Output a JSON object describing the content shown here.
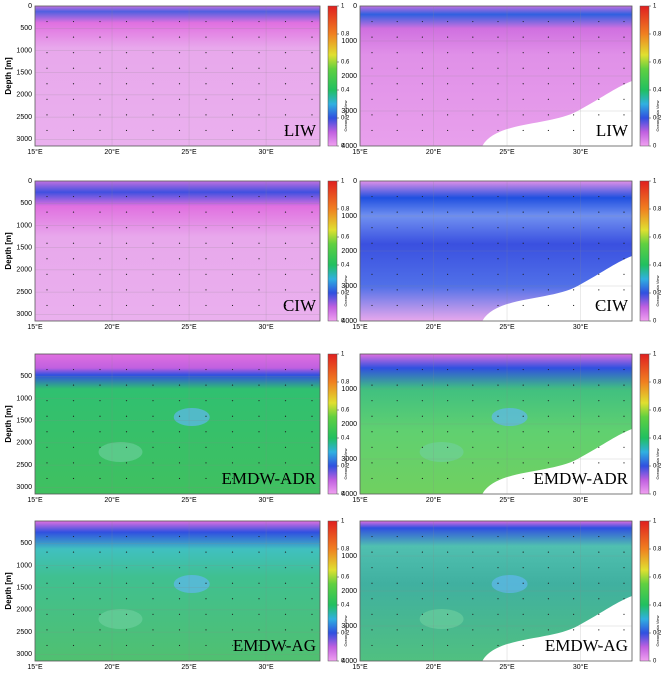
{
  "chart_data": [
    {
      "type": "section",
      "title": "LIW",
      "ylabel": "Depth [m]",
      "colorbar_label": "Ocean Data View",
      "xlim": [
        15,
        33.5
      ],
      "xticks": [
        {
          "value": 15,
          "label": "15°E"
        },
        {
          "value": 20,
          "label": "20°E"
        },
        {
          "value": 25,
          "label": "25°E"
        },
        {
          "value": 30,
          "label": "30°E"
        }
      ],
      "ylim": [
        0,
        3150
      ],
      "yticks": [
        0,
        500,
        1000,
        1500,
        2000,
        2500,
        3000
      ],
      "clim": [
        0,
        1
      ],
      "cticks": [
        0,
        0.2,
        0.4,
        0.6,
        0.8,
        1
      ]
    },
    {
      "type": "section",
      "title": "LIW",
      "colorbar_label": "Ocean Data View",
      "xlim": [
        15,
        33.5
      ],
      "xticks": [
        {
          "value": 15,
          "label": "15°E"
        },
        {
          "value": 20,
          "label": "20°E"
        },
        {
          "value": 25,
          "label": "25°E"
        },
        {
          "value": 30,
          "label": "30°E"
        }
      ],
      "ylim": [
        0,
        4000
      ],
      "yticks": [
        0,
        1000,
        2000,
        3000,
        4000
      ],
      "clim": [
        0,
        1
      ],
      "cticks": [
        0,
        0.2,
        0.4,
        0.6,
        0.8,
        1
      ]
    },
    {
      "type": "section",
      "title": "CIW",
      "ylabel": "Depth [m]",
      "colorbar_label": "Ocean Data View",
      "xlim": [
        15,
        33.5
      ],
      "xticks": [
        {
          "value": 15,
          "label": "15°E"
        },
        {
          "value": 20,
          "label": "20°E"
        },
        {
          "value": 25,
          "label": "25°E"
        },
        {
          "value": 30,
          "label": "30°E"
        }
      ],
      "ylim": [
        0,
        3150
      ],
      "yticks": [
        0,
        500,
        1000,
        1500,
        2000,
        2500,
        3000
      ],
      "clim": [
        0,
        1
      ],
      "cticks": [
        0,
        0.2,
        0.4,
        0.6,
        0.8,
        1
      ]
    },
    {
      "type": "section",
      "title": "CIW",
      "colorbar_label": "Ocean Data View",
      "xlim": [
        15,
        33.5
      ],
      "xticks": [
        {
          "value": 15,
          "label": "15°E"
        },
        {
          "value": 20,
          "label": "20°E"
        },
        {
          "value": 25,
          "label": "25°E"
        },
        {
          "value": 30,
          "label": "30°E"
        }
      ],
      "ylim": [
        0,
        4000
      ],
      "yticks": [
        0,
        1000,
        2000,
        3000,
        4000
      ],
      "clim": [
        0,
        1
      ],
      "cticks": [
        0,
        0.2,
        0.4,
        0.6,
        0.8,
        1
      ]
    },
    {
      "type": "section",
      "title": "EMDW-ADR",
      "ylabel": "Depth [m]",
      "colorbar_label": "Ocean Data View",
      "xlim": [
        15,
        33.5
      ],
      "xticks": [
        {
          "value": 15,
          "label": "15°E"
        },
        {
          "value": 20,
          "label": "20°E"
        },
        {
          "value": 25,
          "label": "25°E"
        },
        {
          "value": 30,
          "label": "30°E"
        }
      ],
      "ylim": [
        0,
        3150
      ],
      "yticks": [
        500,
        1000,
        1500,
        2000,
        2500,
        3000
      ],
      "clim": [
        0,
        1
      ],
      "cticks": [
        0,
        0.2,
        0.4,
        0.6,
        0.8,
        1
      ]
    },
    {
      "type": "section",
      "title": "EMDW-ADR",
      "colorbar_label": "Ocean Data View",
      "xlim": [
        15,
        33.5
      ],
      "xticks": [
        {
          "value": 15,
          "label": "15°E"
        },
        {
          "value": 20,
          "label": "20°E"
        },
        {
          "value": 25,
          "label": "25°E"
        },
        {
          "value": 30,
          "label": "30°E"
        }
      ],
      "ylim": [
        0,
        4000
      ],
      "yticks": [
        1000,
        2000,
        3000,
        4000
      ],
      "clim": [
        0,
        1
      ],
      "cticks": [
        0,
        0.2,
        0.4,
        0.6,
        0.8,
        1
      ]
    },
    {
      "type": "section",
      "title": "EMDW-AG",
      "ylabel": "Depth [m]",
      "colorbar_label": "Ocean Data View",
      "xlim": [
        15,
        33.5
      ],
      "xticks": [
        {
          "value": 15,
          "label": "15°E"
        },
        {
          "value": 20,
          "label": "20°E"
        },
        {
          "value": 25,
          "label": "25°E"
        },
        {
          "value": 30,
          "label": "30°E"
        }
      ],
      "ylim": [
        0,
        3150
      ],
      "yticks": [
        500,
        1000,
        1500,
        2000,
        2500,
        3000
      ],
      "clim": [
        0,
        1
      ],
      "cticks": [
        0,
        0.2,
        0.4,
        0.6,
        0.8,
        1
      ]
    },
    {
      "type": "section",
      "title": "EMDW-AG",
      "colorbar_label": "Ocean Data View",
      "xlim": [
        15,
        33.5
      ],
      "xticks": [
        {
          "value": 15,
          "label": "15°E"
        },
        {
          "value": 20,
          "label": "20°E"
        },
        {
          "value": 25,
          "label": "25°E"
        },
        {
          "value": 30,
          "label": "30°E"
        }
      ],
      "ylim": [
        0,
        4000
      ],
      "yticks": [
        1000,
        2000,
        3000,
        4000
      ],
      "clim": [
        0,
        1
      ],
      "cticks": [
        0,
        0.2,
        0.4,
        0.6,
        0.8,
        1
      ]
    }
  ]
}
